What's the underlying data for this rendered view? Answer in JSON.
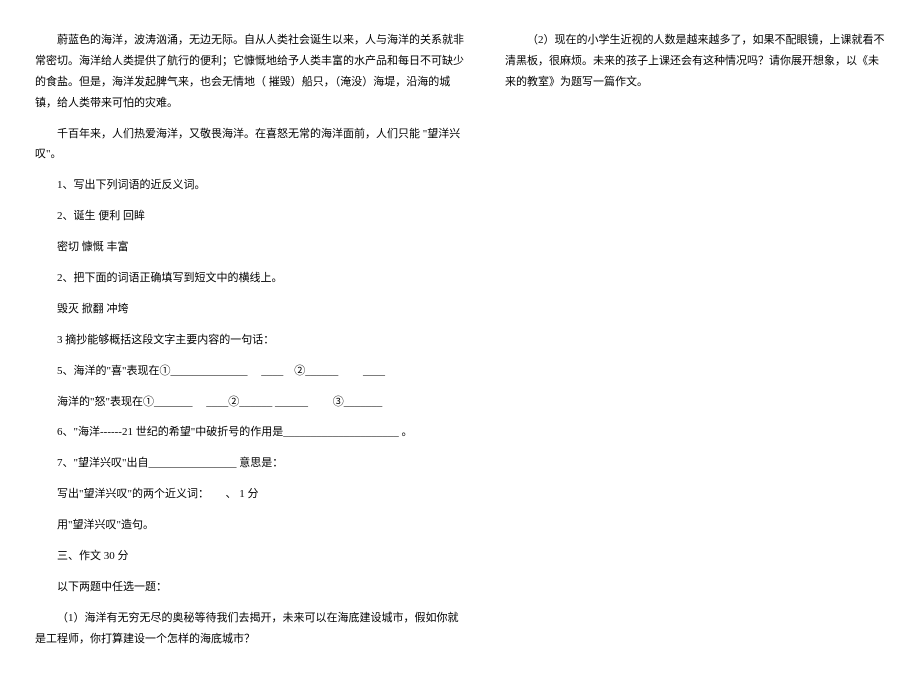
{
  "left": {
    "p1": "蔚蓝色的海洋，波涛汹涌，无边无际。自从人类社会诞生以来，人与海洋的关系就非常密切。海洋给人类提供了航行的便利；它慷慨地给予人类丰富的水产品和每日不可缺少的食盐。但是，海洋发起脾气来，也会无情地（ 摧毁）船只，（淹没）海堤，沿海的城镇，给人类带来可怕的灾难。",
    "p2": "千百年来，人们热爱海洋，又敬畏海洋。在喜怒无常的海洋面前，人们只能 \"望洋兴叹\"。",
    "q1": "1、写出下列词语的近反义词。",
    "q2a": "2、诞生      便利      回眸",
    "q2b": "密切      慷慨      丰富",
    "q2c": "2、把下面的词语正确填写到短文中的横线上。",
    "q2d": "毁灭           掀翻           冲垮",
    "q3": "3 摘抄能够概括这段文字主要内容的一句话：",
    "q5": "5、海洋的\"喜\"表现在①______________　  ____　②______　 　____",
    "q5b": "海洋的\"怒\"表现在①_______　 ____②______ ______　 　③_______",
    "q6": "6、\"海洋------21 世纪的希望\"中破折号的作用是_____________________ 。",
    "q7": "7、\"望洋兴叹\"出自________________  意思是：",
    "q7b": "写出\"望洋兴叹\"的两个近义词：         　          、                    1 分",
    "q7c": "用\"望洋兴叹\"造句。",
    "s3": "三、作文 30 分",
    "s3a": "以下两题中任选一题：",
    "s3b": "（1）海洋有无穷无尽的奥秘等待我们去揭开，未来可以在海底建设城市，假如你就是工程师，你打算建设一个怎样的海底城市？"
  },
  "right": {
    "p1": "（2）现在的小学生近视的人数是越来越多了，如果不配眼镜，上课就看不清黑板，很麻烦。未来的孩子上课还会有这种情况吗？请你展开想象，以《未来的教室》为题写一篇作文。"
  }
}
